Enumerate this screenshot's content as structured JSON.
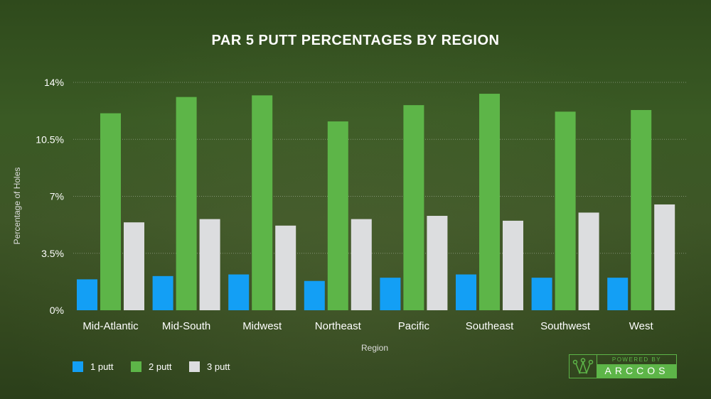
{
  "chart_data": {
    "type": "bar",
    "title": "PAR 5 PUTT PERCENTAGES BY REGION",
    "xlabel": "Region",
    "ylabel": "Percentage of Holes",
    "ylim": [
      0,
      14
    ],
    "yticks": [
      "0%",
      "3.5%",
      "7%",
      "10.5%",
      "14%"
    ],
    "ytick_values": [
      0,
      3.5,
      7,
      10.5,
      14
    ],
    "grid": true,
    "legend_position": "bottom-left",
    "categories": [
      "Mid-Atlantic",
      "Mid-South",
      "Midwest",
      "Northeast",
      "Pacific",
      "Southeast",
      "Southwest",
      "West"
    ],
    "series": [
      {
        "name": "1 putt",
        "color": "#139ff5",
        "values": [
          1.9,
          2.1,
          2.2,
          1.8,
          2.0,
          2.2,
          2.0,
          2.0
        ]
      },
      {
        "name": "2 putt",
        "color": "#5db548",
        "values": [
          12.1,
          13.1,
          13.2,
          11.6,
          12.6,
          13.3,
          12.2,
          12.3
        ]
      },
      {
        "name": "3 putt",
        "color": "#dcdddf",
        "values": [
          5.4,
          5.6,
          5.2,
          5.6,
          5.8,
          5.5,
          6.0,
          6.5
        ]
      }
    ]
  },
  "logo": {
    "top": "POWERED BY",
    "brand": "ARCCOS"
  }
}
